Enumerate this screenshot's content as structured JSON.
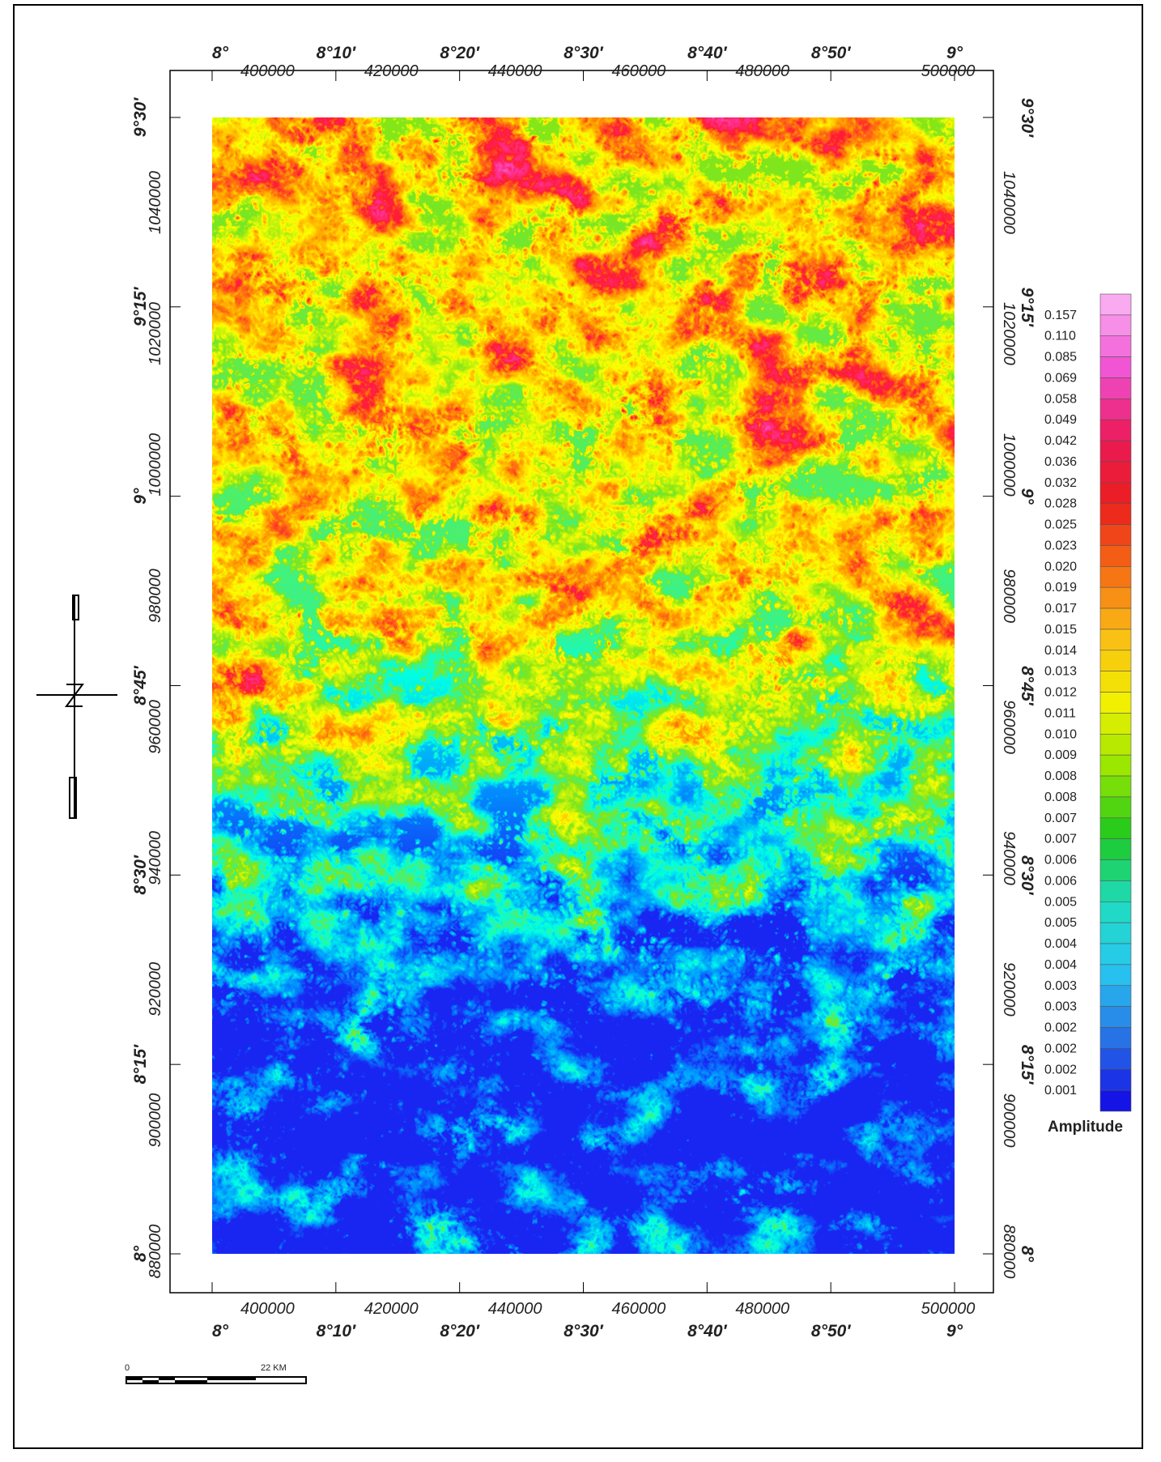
{
  "top_axis": {
    "degrees": [
      "8°",
      "8°10′",
      "8°20′",
      "8°30′",
      "8°40′",
      "8°50′",
      "9°"
    ],
    "eastings": [
      "400000",
      "420000",
      "440000",
      "460000",
      "480000",
      "500000"
    ]
  },
  "bottom_axis": {
    "degrees": [
      "8°",
      "8°10′",
      "8°20′",
      "8°30′",
      "8°40′",
      "8°50′",
      "9°"
    ],
    "eastings": [
      "400000",
      "420000",
      "440000",
      "460000",
      "480000",
      "500000"
    ]
  },
  "left_axis": {
    "latitudes": [
      "9°30′",
      "9°15′",
      "9°",
      "8°45′",
      "8°30′",
      "8°15′",
      "8°"
    ],
    "northings": [
      "1040000",
      "1020000",
      "1000000",
      "980000",
      "960000",
      "940000",
      "920000",
      "900000",
      "880000"
    ]
  },
  "right_axis": {
    "latitudes": [
      "9°30′",
      "9°15′",
      "9°",
      "8°45′",
      "8°30′",
      "8°15′",
      "8°"
    ],
    "northings": [
      "1040000",
      "1020000",
      "1000000",
      "980000",
      "960000",
      "940000",
      "920000",
      "900000",
      "880000"
    ]
  },
  "colorbar": {
    "title": "Amplitude",
    "labels": [
      "0.157",
      "0.110",
      "0.085",
      "0.069",
      "0.058",
      "0.049",
      "0.042",
      "0.036",
      "0.032",
      "0.028",
      "0.025",
      "0.023",
      "0.020",
      "0.019",
      "0.017",
      "0.015",
      "0.014",
      "0.013",
      "0.012",
      "0.011",
      "0.010",
      "0.009",
      "0.008",
      "0.008",
      "0.007",
      "0.007",
      "0.006",
      "0.006",
      "0.005",
      "0.005",
      "0.004",
      "0.004",
      "0.003",
      "0.003",
      "0.002",
      "0.002",
      "0.002",
      "0.001"
    ]
  },
  "scale_bar": {
    "start": "0",
    "end": "22 KM"
  }
}
